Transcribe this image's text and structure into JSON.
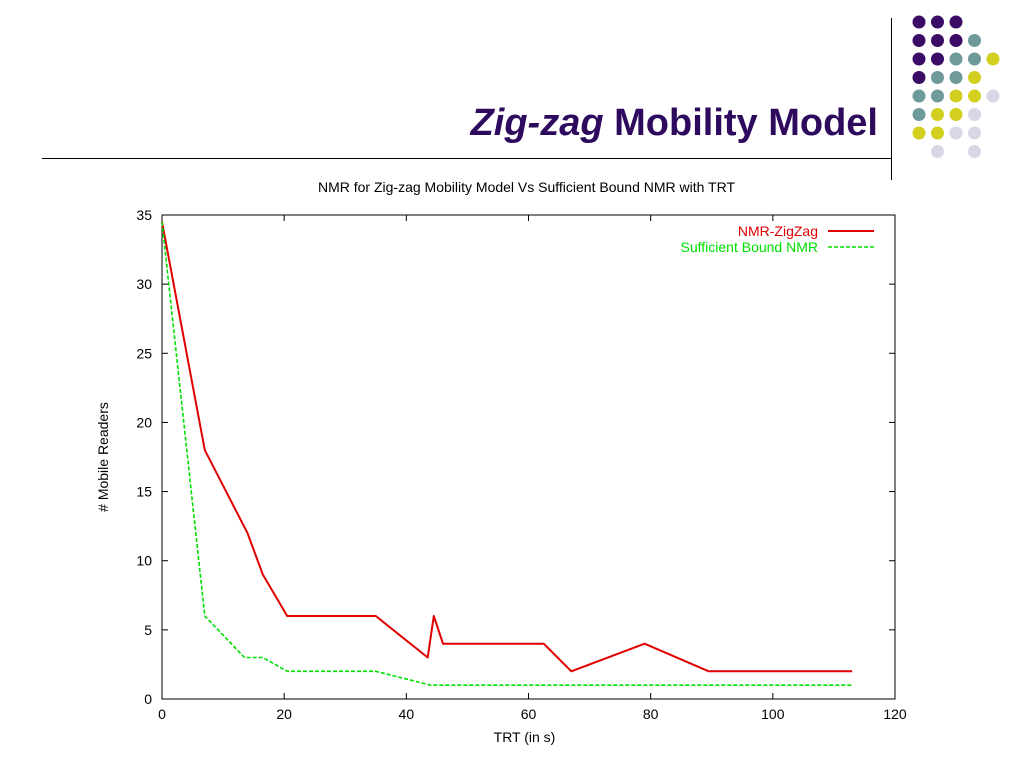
{
  "slide": {
    "title_italic": "Zig-zag",
    "title_rest": "Mobility Model",
    "colors": {
      "title": "#2e0a5e",
      "dot_purple": "#3a0c66",
      "dot_teal": "#6f9a9a",
      "dot_yellow": "#d2cf1e",
      "dot_lavender": "#d7d7e6"
    }
  },
  "chart_data": {
    "type": "line",
    "title": "NMR for Zig-zag Mobility Model Vs Sufficient Bound NMR with TRT",
    "xlabel": "TRT (in s)",
    "ylabel": "# Mobile Readers",
    "xlim": [
      0,
      120
    ],
    "ylim": [
      0,
      35
    ],
    "xticks": [
      0,
      20,
      40,
      60,
      80,
      100,
      120
    ],
    "yticks": [
      0,
      5,
      10,
      15,
      20,
      25,
      30,
      35
    ],
    "grid": false,
    "legend_position": "top-right",
    "series": [
      {
        "name": "NMR-ZigZag",
        "color": "#e00000",
        "style": "solid",
        "x": [
          0,
          7,
          14,
          16.5,
          20.5,
          35,
          43.5,
          44.5,
          46,
          62.5,
          67,
          79,
          89.5,
          113
        ],
        "y": [
          34.5,
          18,
          12,
          9,
          6,
          6,
          3,
          6,
          4,
          4,
          2,
          4,
          2,
          2
        ]
      },
      {
        "name": "Sufficient Bound NMR",
        "color": "#00e000",
        "style": "dashed",
        "x": [
          0,
          7,
          13.5,
          16.5,
          20.5,
          35,
          44,
          113
        ],
        "y": [
          34.5,
          6,
          3,
          3,
          2,
          2,
          1,
          1
        ]
      }
    ]
  }
}
